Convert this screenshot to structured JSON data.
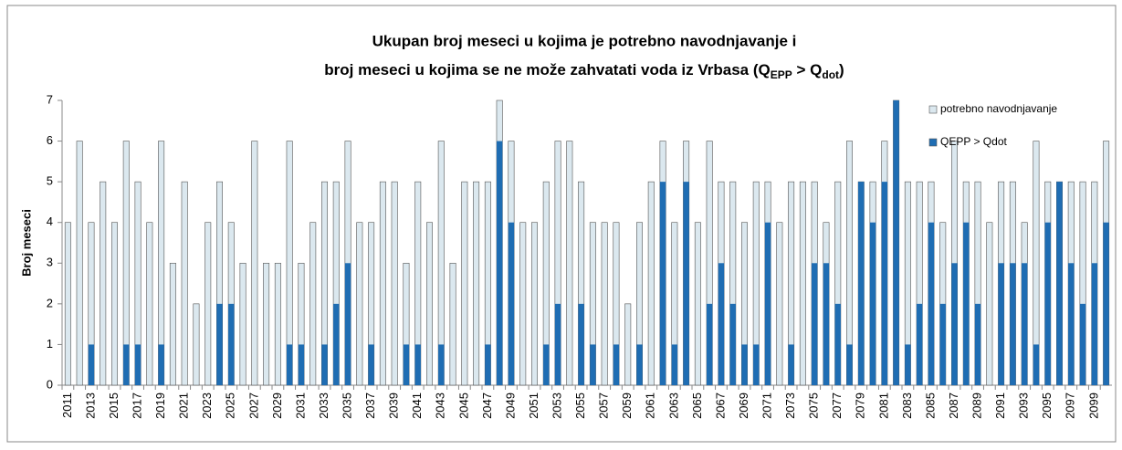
{
  "chart_data": {
    "type": "bar",
    "title": {
      "line1": "Ukupan broj meseci u kojima je potrebno navodnjavanje i",
      "line2": [
        "broj meseci u kojima se ne može zahvatati voda iz Vrbasa (Q",
        "EPP",
        " > Q",
        "dot",
        ")"
      ]
    },
    "y_label": "Broj meseci",
    "categories": [
      "2011",
      null,
      "2013",
      null,
      "2015",
      null,
      "2017",
      null,
      "2019",
      null,
      "2021",
      null,
      "2023",
      null,
      "2025",
      null,
      "2027",
      null,
      "2029",
      null,
      "2031",
      null,
      "2033",
      null,
      "2035",
      null,
      "2037",
      null,
      "2039",
      null,
      "2041",
      null,
      "2043",
      null,
      "2045",
      null,
      "2047",
      null,
      "2049",
      null,
      "2051",
      null,
      "2053",
      null,
      "2055",
      null,
      "2057",
      null,
      "2059",
      null,
      "2061",
      null,
      "2063",
      null,
      "2065",
      null,
      "2067",
      null,
      "2069",
      null,
      "2071",
      null,
      "2073",
      null,
      "2075",
      null,
      "2077",
      null,
      "2079",
      null,
      "2081",
      null,
      "2083",
      null,
      "2085",
      null,
      "2087",
      null,
      "2089",
      null,
      "2091",
      null,
      "2093",
      null,
      "2095",
      null,
      "2097",
      null,
      "2099",
      null
    ],
    "series": [
      {
        "name": "potrebno navodnjavanje",
        "color": "#dbe8ef",
        "values": [
          4,
          6,
          4,
          5,
          4,
          6,
          5,
          4,
          6,
          3,
          5,
          2,
          4,
          5,
          4,
          3,
          6,
          3,
          3,
          6,
          3,
          4,
          5,
          5,
          6,
          4,
          4,
          5,
          5,
          3,
          5,
          4,
          6,
          3,
          5,
          5,
          5,
          7,
          6,
          4,
          4,
          5,
          6,
          6,
          5,
          4,
          4,
          4,
          2,
          4,
          5,
          6,
          4,
          6,
          4,
          6,
          5,
          5,
          4,
          5,
          5,
          4,
          5,
          5,
          5,
          4,
          5,
          6,
          5,
          5,
          6,
          7,
          5,
          5,
          5,
          4,
          6,
          5,
          5,
          4,
          5,
          5,
          4,
          6,
          5,
          5,
          5,
          5,
          5,
          6
        ]
      },
      {
        "name": "QEPP > Qdot",
        "color": "#1f6db3",
        "values": [
          0,
          0,
          1,
          0,
          0,
          1,
          1,
          0,
          1,
          0,
          0,
          0,
          0,
          2,
          2,
          0,
          0,
          0,
          0,
          1,
          1,
          0,
          1,
          2,
          3,
          0,
          1,
          0,
          0,
          1,
          1,
          0,
          1,
          0,
          0,
          0,
          1,
          6,
          4,
          0,
          0,
          1,
          2,
          0,
          2,
          1,
          0,
          1,
          0,
          1,
          0,
          5,
          1,
          5,
          0,
          2,
          3,
          2,
          1,
          1,
          4,
          0,
          1,
          0,
          3,
          3,
          2,
          1,
          5,
          4,
          5,
          7,
          1,
          2,
          4,
          2,
          3,
          4,
          2,
          0,
          3,
          3,
          3,
          1,
          4,
          5,
          3,
          2,
          3,
          4
        ]
      }
    ],
    "ylim": [
      0,
      7
    ],
    "yticks": [
      0,
      1,
      2,
      3,
      4,
      5,
      6,
      7
    ],
    "legend": "top-right"
  }
}
